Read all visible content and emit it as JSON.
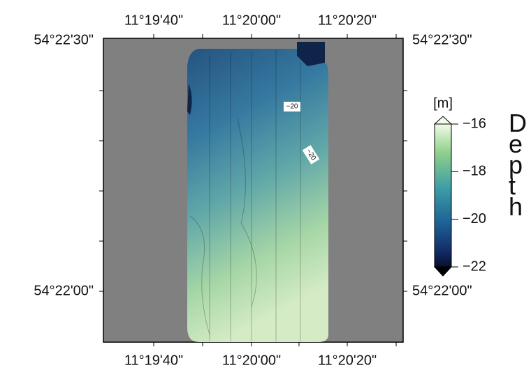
{
  "map": {
    "lon_labels": [
      "11°19'40\"",
      "11°20'00\"",
      "11°20'20\""
    ],
    "lat_labels": [
      "54°22'30\"",
      "54°22'00\""
    ],
    "contour_labels": [
      "−20",
      "−20"
    ]
  },
  "colorbar": {
    "unit": "[m]",
    "title": "Depth",
    "lim": [
      -22,
      -16
    ],
    "ticks": [
      {
        "value": -16,
        "label": "−16"
      },
      {
        "value": -18,
        "label": "−18"
      },
      {
        "value": -20,
        "label": "−20"
      },
      {
        "value": -22,
        "label": "−22"
      }
    ]
  }
}
